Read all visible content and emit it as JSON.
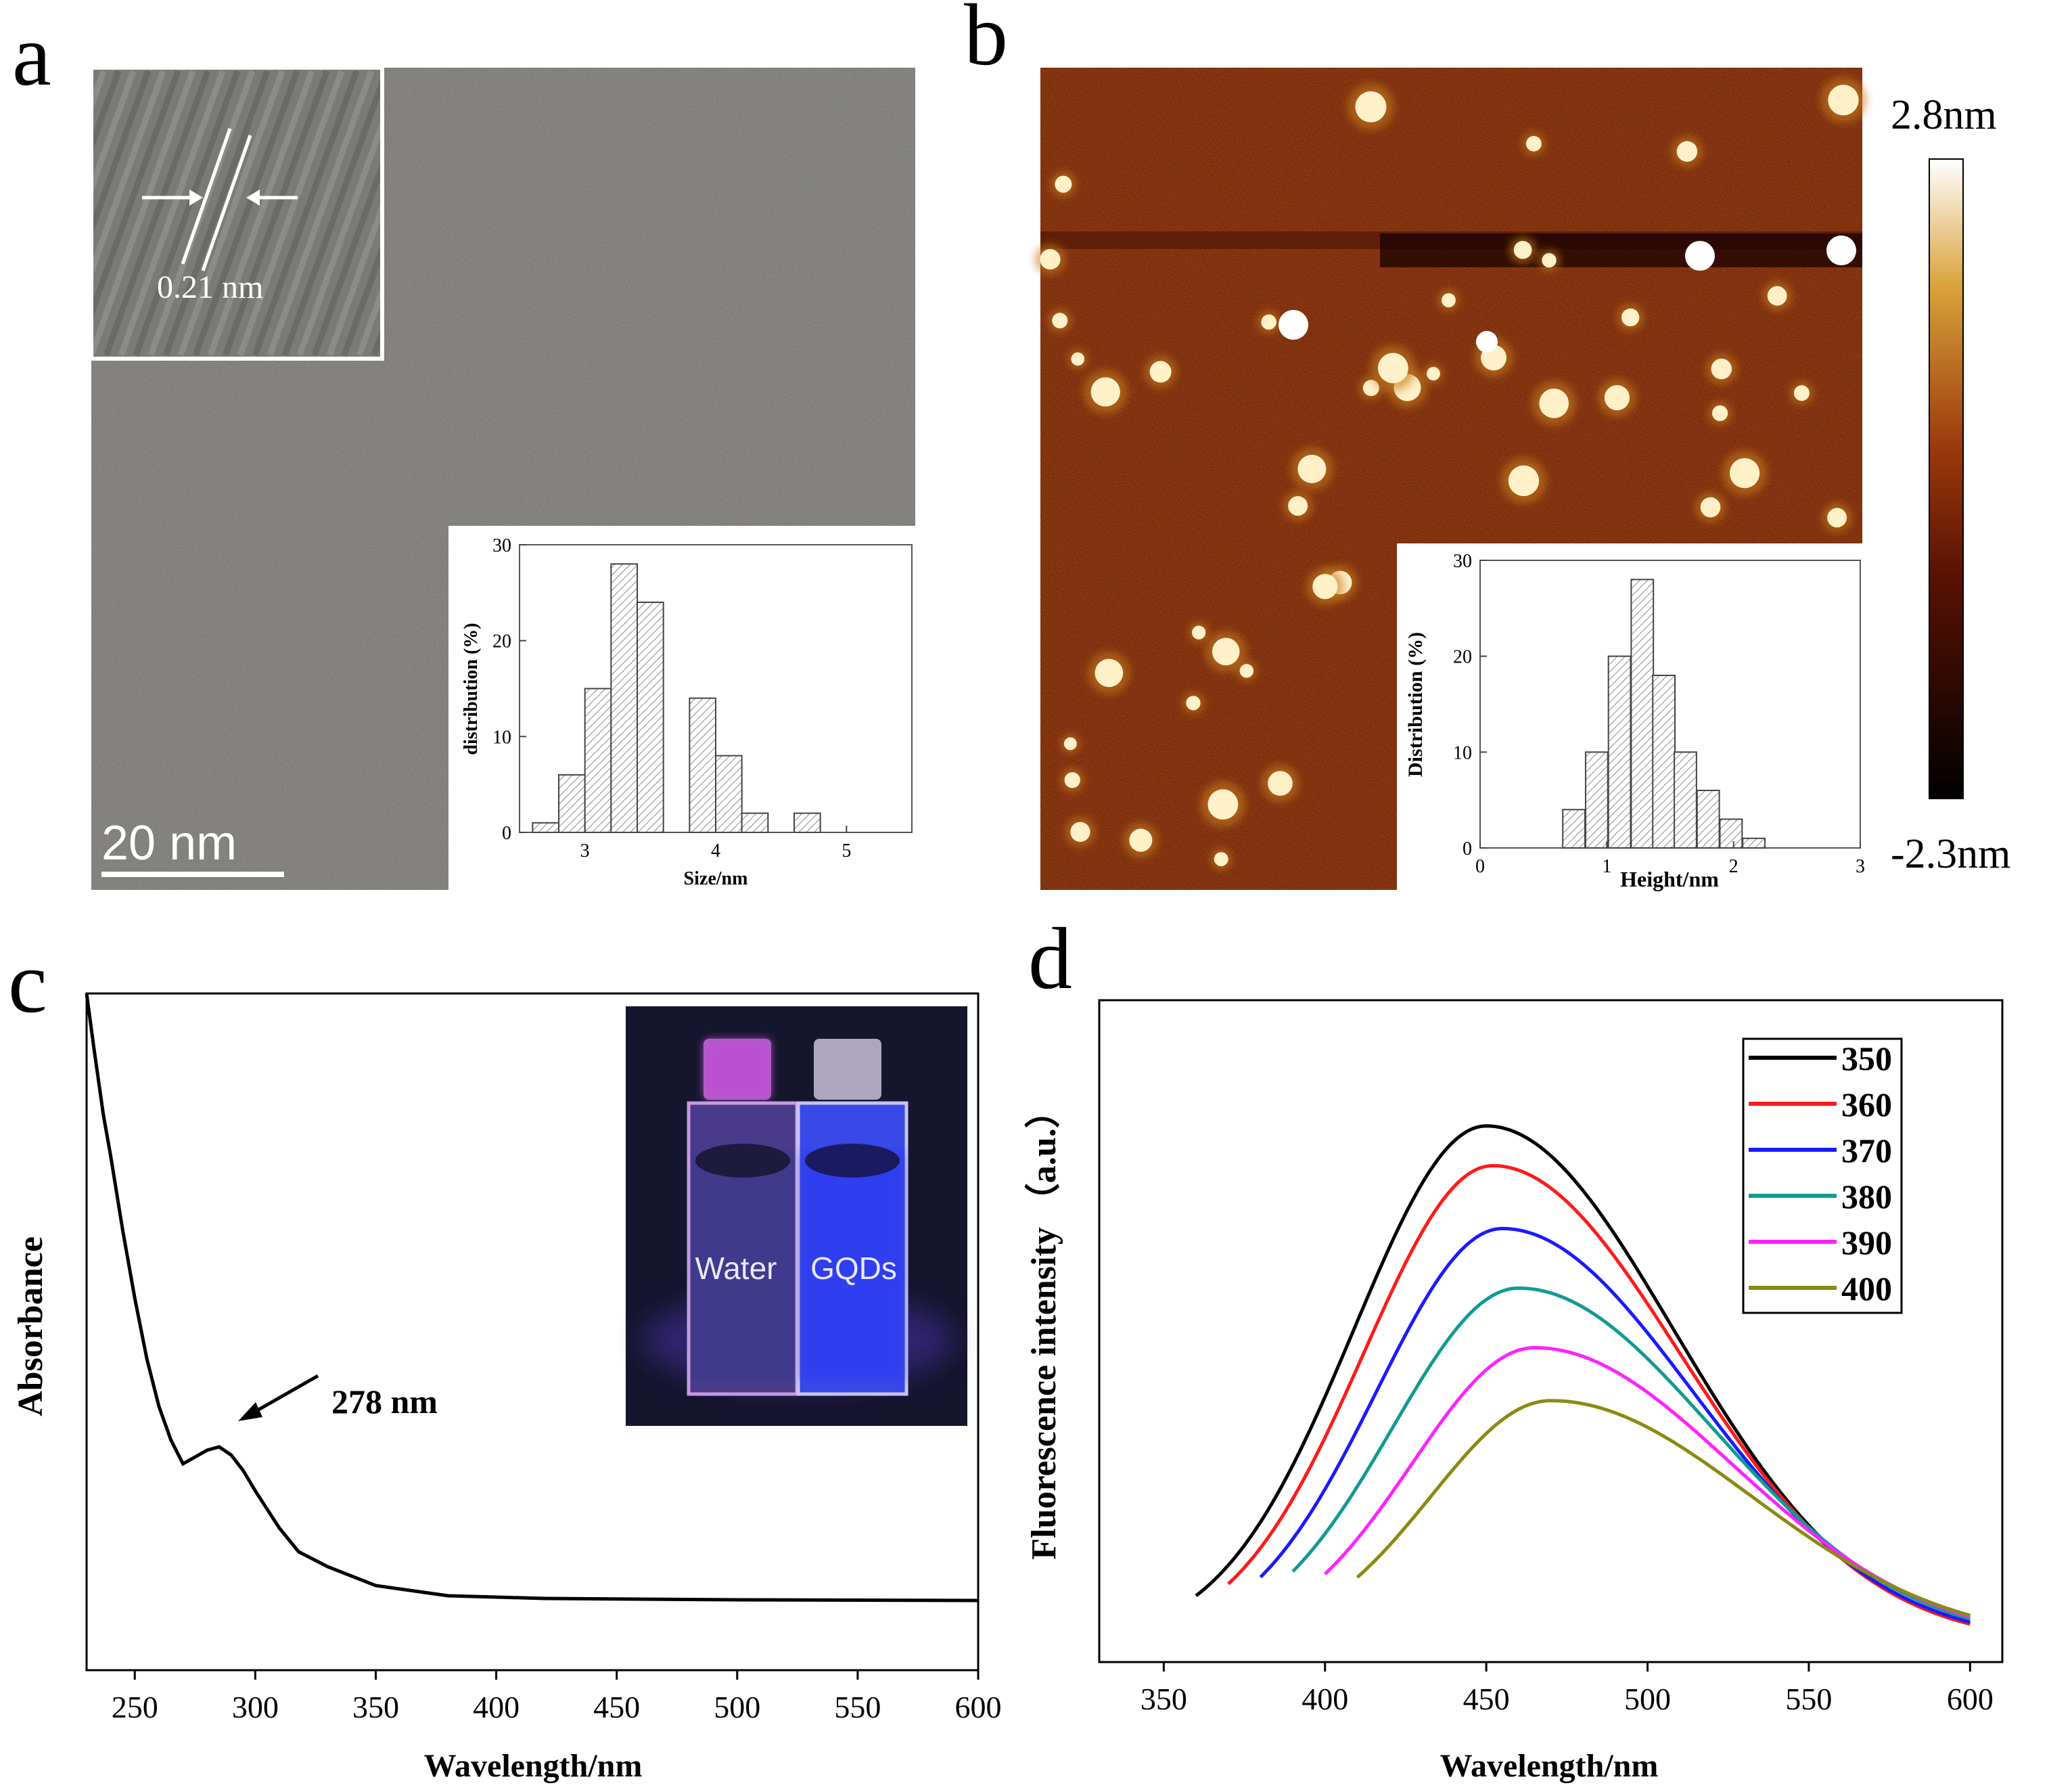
{
  "colors": {
    "tem_bg": "#6e6c68",
    "afm_bg": "#6a1c06",
    "afm_particle": "#fff0c8",
    "uv_night": "#15152e",
    "glow_purple": "#c24bd9",
    "glow_blue": "#2f3cf0"
  },
  "panels": {
    "a": {
      "label": "a",
      "lattice_label": "0.21 nm",
      "scale_bar": "20 nm",
      "hist": {
        "type": "bar",
        "ylabel": "distribution (%)",
        "xlabel": "Size/nm",
        "x_ticks": [
          "3",
          "4",
          "5"
        ],
        "y_ticks": [
          "0",
          "10",
          "20",
          "30"
        ],
        "xlim": [
          2.5,
          5.5
        ],
        "ylim": [
          0,
          30
        ],
        "bin_width": 0.2,
        "bin_centers": [
          2.7,
          2.9,
          3.1,
          3.3,
          3.5,
          3.7,
          3.9,
          4.1,
          4.3,
          4.5,
          4.7,
          4.9
        ],
        "values": [
          1,
          6,
          15,
          28,
          24,
          0,
          14,
          8,
          2,
          0,
          2,
          0
        ]
      }
    },
    "b": {
      "label": "b",
      "colorbar_max": "2.8nm",
      "colorbar_min": "-2.3nm",
      "hist": {
        "type": "bar",
        "ylabel": "Distribution (%)",
        "xlabel": "Height/nm",
        "x_ticks": [
          "0",
          "1",
          "2",
          "3"
        ],
        "y_ticks": [
          "0",
          "10",
          "20",
          "30"
        ],
        "xlim": [
          0,
          3
        ],
        "ylim": [
          0,
          30
        ],
        "bin_width": 0.175,
        "bin_centers": [
          0.74,
          0.92,
          1.1,
          1.28,
          1.45,
          1.62,
          1.8,
          1.98,
          2.16,
          2.33,
          2.5
        ],
        "values": [
          4,
          10,
          20,
          28,
          18,
          10,
          6,
          3,
          1,
          0,
          0
        ]
      }
    },
    "c": {
      "label": "c",
      "annotation": "278 nm",
      "inset_labels": [
        "Water",
        "GQDs"
      ],
      "chart": {
        "type": "line",
        "xlabel": "Wavelength/nm",
        "ylabel": "Absorbance",
        "xlim": [
          230,
          600
        ],
        "ylim": [
          0,
          1
        ],
        "x_ticks": [
          "250",
          "300",
          "350",
          "400",
          "450",
          "500",
          "550",
          "600"
        ],
        "x": [
          230,
          233,
          237,
          240,
          245,
          250,
          255,
          260,
          265,
          270,
          275,
          280,
          285,
          290,
          295,
          300,
          310,
          318,
          330,
          350,
          380,
          420,
          500,
          600
        ],
        "y": [
          1.0,
          0.92,
          0.82,
          0.76,
          0.65,
          0.55,
          0.46,
          0.39,
          0.34,
          0.305,
          0.315,
          0.325,
          0.33,
          0.318,
          0.295,
          0.265,
          0.21,
          0.175,
          0.153,
          0.125,
          0.11,
          0.106,
          0.104,
          0.103
        ]
      }
    },
    "d": {
      "label": "d",
      "chart": {
        "type": "line",
        "xlabel": "Wavelength/nm",
        "ylabel": "Fluorescence intensity （a.u.）",
        "xlim": [
          330,
          610
        ],
        "ylim": [
          0,
          1
        ],
        "x_ticks": [
          "350",
          "400",
          "450",
          "500",
          "550",
          "600"
        ],
        "series": [
          {
            "name": "350",
            "color": "#000000",
            "start": 360,
            "peak_x": 450,
            "peak": 0.81,
            "sigL": 41,
            "sigR": 58,
            "base": 0.03
          },
          {
            "name": "360",
            "color": "#ff1a1a",
            "start": 370,
            "peak_x": 452,
            "peak": 0.75,
            "sigL": 40,
            "sigR": 58,
            "base": 0.03
          },
          {
            "name": "370",
            "color": "#1a1aff",
            "start": 380,
            "peak_x": 455,
            "peak": 0.655,
            "sigL": 39,
            "sigR": 59,
            "base": 0.03
          },
          {
            "name": "380",
            "color": "#129a92",
            "start": 390,
            "peak_x": 460,
            "peak": 0.565,
            "sigL": 39,
            "sigR": 60,
            "base": 0.03
          },
          {
            "name": "390",
            "color": "#ff22ff",
            "start": 400,
            "peak_x": 465,
            "peak": 0.475,
            "sigL": 38,
            "sigR": 61,
            "base": 0.03
          },
          {
            "name": "400",
            "color": "#8a8a12",
            "start": 410,
            "peak_x": 470,
            "peak": 0.395,
            "sigL": 37,
            "sigR": 62,
            "base": 0.03
          }
        ]
      }
    }
  }
}
